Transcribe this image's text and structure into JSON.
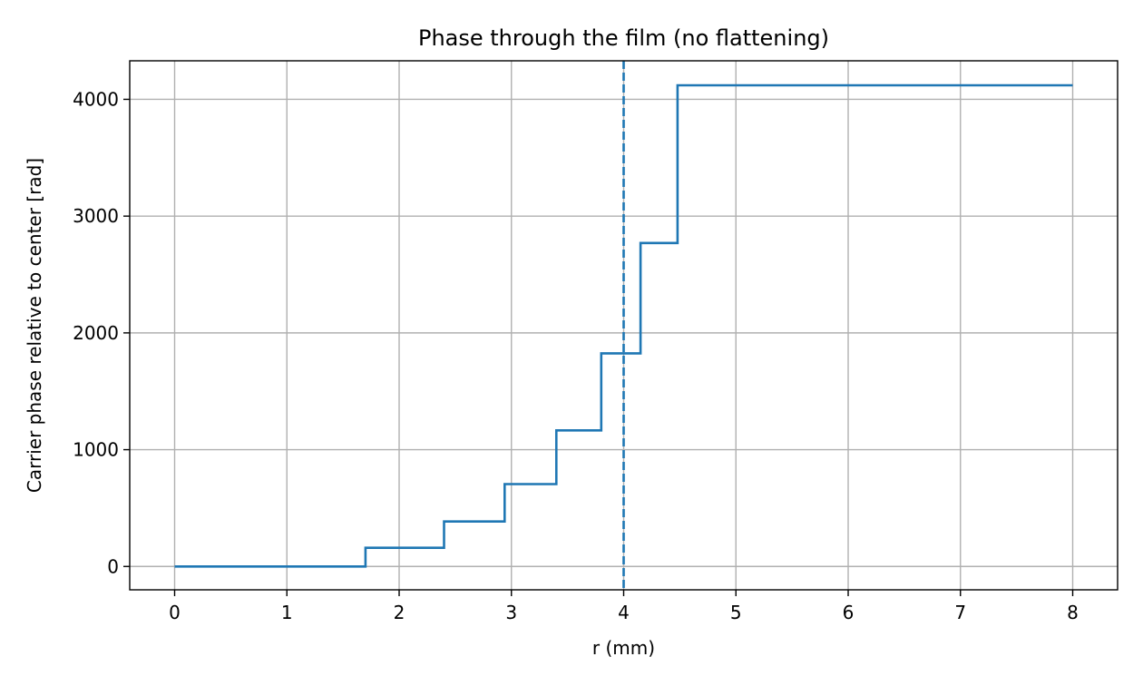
{
  "chart_data": {
    "type": "line",
    "title": "Phase through the film (no flattening)",
    "xlabel": "r (mm)",
    "ylabel": "Carrier phase relative to center [rad]",
    "xlim": [
      -0.4,
      8.4
    ],
    "ylim": [
      -200,
      4330
    ],
    "xticks": [
      0,
      1,
      2,
      3,
      4,
      5,
      6,
      7,
      8
    ],
    "yticks": [
      0,
      1000,
      2000,
      3000,
      4000
    ],
    "grid": true,
    "series": [
      {
        "style": "step",
        "color": "#1f77b4",
        "x": [
          0,
          1.7,
          1.7,
          2.4,
          2.4,
          2.94,
          2.94,
          3.4,
          3.4,
          3.8,
          3.8,
          4.15,
          4.15,
          4.48,
          4.48,
          8.0
        ],
        "y": [
          0,
          0,
          160,
          160,
          385,
          385,
          705,
          705,
          1165,
          1165,
          1825,
          1825,
          2770,
          2770,
          4120,
          4120
        ]
      }
    ],
    "annotations": [
      {
        "type": "vline",
        "x": 4.0,
        "linestyle": "dashed",
        "color": "#1f77b4"
      }
    ]
  }
}
